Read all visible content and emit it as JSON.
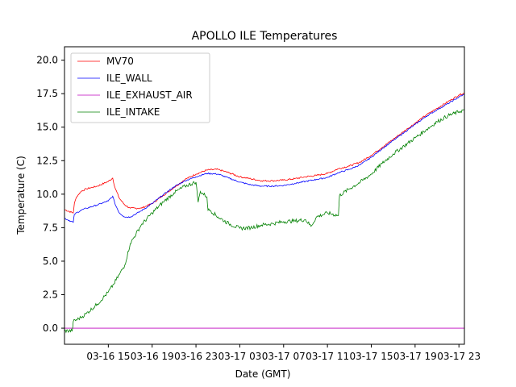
{
  "chart_data": {
    "type": "line",
    "title": "APOLLO ILE Temperatures",
    "xlabel": "Date (GMT)",
    "ylabel": "Temperature (C)",
    "x_unit": "hours since 03-16 11:00 GMT",
    "xlim": [
      0,
      36.5
    ],
    "ylim": [
      -1.2,
      21.0
    ],
    "grid": false,
    "legend": "upper-left",
    "x_ticks": [
      {
        "value": 4,
        "label": "03-16 15"
      },
      {
        "value": 8,
        "label": "03-16 19"
      },
      {
        "value": 12,
        "label": "03-16 23"
      },
      {
        "value": 16,
        "label": "03-17 03"
      },
      {
        "value": 20,
        "label": "03-17 07"
      },
      {
        "value": 24,
        "label": "03-17 11"
      },
      {
        "value": 28,
        "label": "03-17 15"
      },
      {
        "value": 32,
        "label": "03-17 19"
      },
      {
        "value": 36,
        "label": "03-17 23"
      }
    ],
    "y_ticks": [
      {
        "value": 0.0,
        "label": "0.0"
      },
      {
        "value": 2.5,
        "label": "2.5"
      },
      {
        "value": 5.0,
        "label": "5.0"
      },
      {
        "value": 7.5,
        "label": "7.5"
      },
      {
        "value": 10.0,
        "label": "10.0"
      },
      {
        "value": 12.5,
        "label": "12.5"
      },
      {
        "value": 15.0,
        "label": "15.0"
      },
      {
        "value": 17.5,
        "label": "17.5"
      },
      {
        "value": 20.0,
        "label": "20.0"
      }
    ],
    "series": [
      {
        "name": "MV70",
        "color": "#ff0000",
        "x": [
          0,
          0.8,
          0.9,
          1.1,
          1.5,
          2,
          3,
          4,
          4.4,
          4.6,
          5,
          5.5,
          6,
          7,
          8,
          9,
          10,
          11,
          12,
          13,
          14,
          15,
          16,
          17,
          18,
          19,
          20,
          21,
          22,
          23,
          24,
          25,
          26,
          27,
          28,
          29,
          30,
          31,
          32,
          33,
          34,
          35,
          36,
          36.5
        ],
        "y": [
          8.85,
          8.6,
          9.3,
          9.8,
          10.2,
          10.4,
          10.6,
          10.95,
          11.2,
          10.5,
          9.7,
          9.2,
          8.95,
          8.95,
          9.3,
          9.9,
          10.5,
          11.1,
          11.5,
          11.8,
          11.85,
          11.6,
          11.3,
          11.15,
          11.0,
          11.0,
          11.05,
          11.15,
          11.3,
          11.4,
          11.55,
          11.9,
          12.1,
          12.4,
          12.9,
          13.5,
          14.1,
          14.7,
          15.3,
          15.9,
          16.4,
          16.9,
          17.4,
          17.55
        ]
      },
      {
        "name": "ILE_WALL",
        "color": "#0000ff",
        "x": [
          0,
          0.8,
          0.9,
          1.5,
          2,
          3,
          4,
          4.4,
          4.6,
          5,
          5.5,
          6,
          7,
          8,
          9,
          10,
          11,
          12,
          13,
          14,
          15,
          16,
          17,
          18,
          19,
          20,
          21,
          22,
          23,
          24,
          25,
          26,
          27,
          28,
          29,
          30,
          31,
          32,
          33,
          34,
          35,
          36,
          36.5
        ],
        "y": [
          8.2,
          7.9,
          8.5,
          8.8,
          8.95,
          9.2,
          9.5,
          9.85,
          9.3,
          8.6,
          8.3,
          8.3,
          8.75,
          9.3,
          9.95,
          10.55,
          11.0,
          11.3,
          11.55,
          11.5,
          11.2,
          10.9,
          10.7,
          10.6,
          10.6,
          10.65,
          10.8,
          10.95,
          11.1,
          11.25,
          11.6,
          11.85,
          12.2,
          12.75,
          13.4,
          14.0,
          14.6,
          15.2,
          15.8,
          16.3,
          16.75,
          17.25,
          17.45
        ]
      },
      {
        "name": "ILE_EXHAUST_AIR",
        "color": "#bf00bf",
        "x": [
          0,
          36.5
        ],
        "y": [
          0.0,
          0.0
        ]
      },
      {
        "name": "ILE_INTAKE",
        "color": "#008000",
        "x": [
          0,
          0.7,
          0.8,
          1.5,
          2,
          3,
          4,
          4.5,
          5,
          5.5,
          6,
          7,
          8,
          9,
          10,
          11,
          12,
          12.2,
          12.4,
          13,
          13.1,
          13.3,
          14,
          15,
          16,
          17,
          18,
          19,
          20,
          21,
          22,
          22.5,
          23,
          24,
          25,
          25.1,
          26,
          27,
          28,
          29,
          30,
          31,
          32,
          33,
          34,
          35,
          36,
          36.5
        ],
        "y": [
          -0.2,
          -0.2,
          0.5,
          0.8,
          1.1,
          1.8,
          2.7,
          3.3,
          4.0,
          4.7,
          6.3,
          7.7,
          8.6,
          9.4,
          10.1,
          10.6,
          10.9,
          9.4,
          10.2,
          9.8,
          8.8,
          8.8,
          8.3,
          7.8,
          7.45,
          7.5,
          7.7,
          7.8,
          7.95,
          8.0,
          8.1,
          7.6,
          8.3,
          8.6,
          8.4,
          9.9,
          10.4,
          10.9,
          11.5,
          12.3,
          13.0,
          13.6,
          14.2,
          14.8,
          15.4,
          15.85,
          16.15,
          16.3
        ]
      }
    ]
  }
}
